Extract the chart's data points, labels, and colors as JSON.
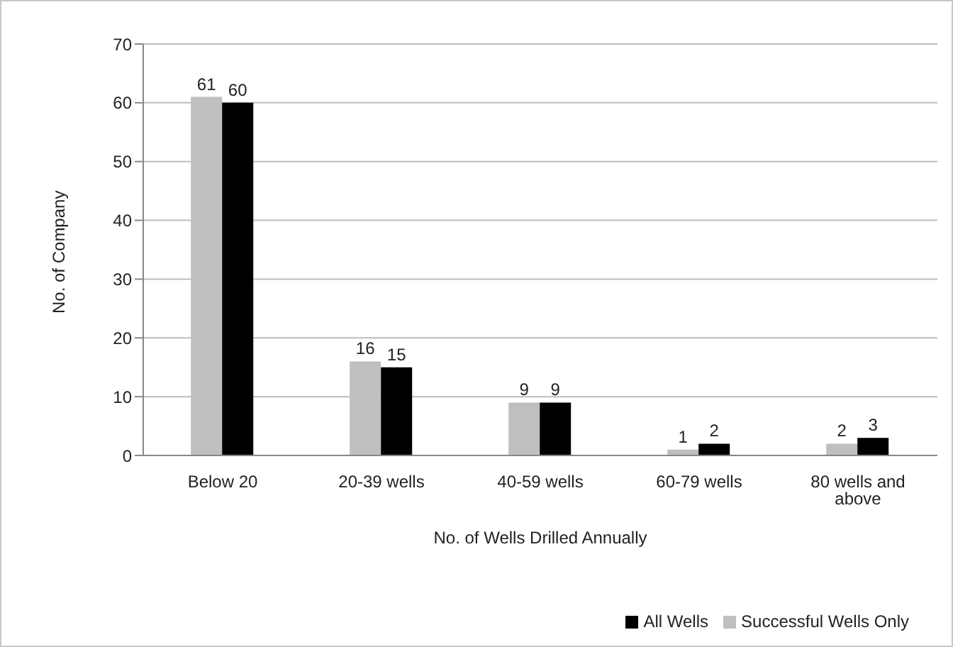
{
  "chart_data": {
    "type": "bar",
    "categories": [
      "Below 20",
      "20-39 wells",
      "40-59 wells",
      "60-79 wells",
      "80 wells and above"
    ],
    "series": [
      {
        "name": "Successful Wells Only",
        "color": "#bfbfbf",
        "values": [
          61,
          16,
          9,
          1,
          2
        ]
      },
      {
        "name": "All Wells",
        "color": "#000000",
        "values": [
          60,
          15,
          9,
          2,
          3
        ]
      }
    ],
    "xlabel": "No. of Wells Drilled Annually",
    "ylabel": "No. of Company",
    "ylim": [
      0,
      70
    ],
    "yticks": [
      0,
      10,
      20,
      30,
      40,
      50,
      60,
      70
    ],
    "grid": "y",
    "legend": "bottom right",
    "data_labels": true
  }
}
